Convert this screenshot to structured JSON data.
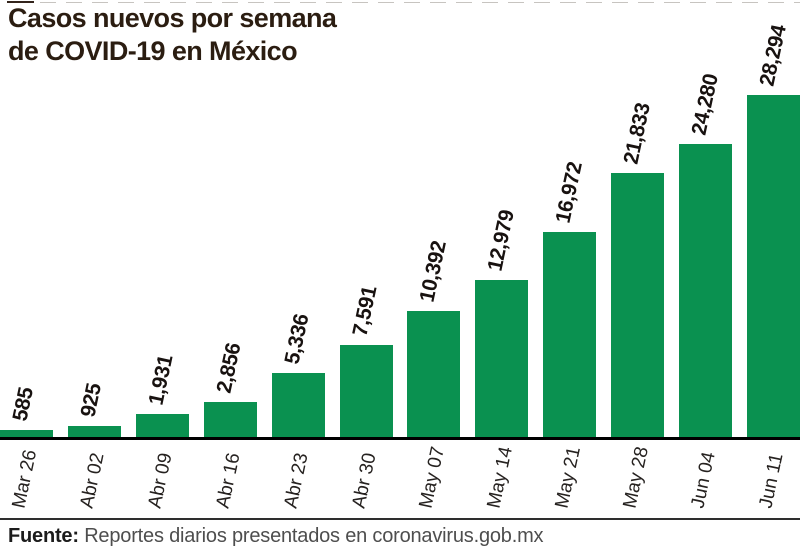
{
  "header": {
    "title_line1": "Casos nuevos por semana",
    "title_line2": "de COVID-19 en México"
  },
  "chart_data": {
    "type": "bar",
    "title": "Casos nuevos por semana de COVID-19 en México",
    "categories": [
      "Mar 26",
      "Abr 02",
      "Abr 09",
      "Abr 16",
      "Abr 23",
      "Abr 30",
      "May 07",
      "May 14",
      "May 21",
      "May 28",
      "Jun 04",
      "Jun 11"
    ],
    "values": [
      585,
      925,
      1931,
      2856,
      5336,
      7591,
      10392,
      12979,
      16972,
      21833,
      24280,
      28294
    ],
    "value_labels": [
      "585",
      "925",
      "1,931",
      "2,856",
      "5,336",
      "7,591",
      "10,392",
      "12,979",
      "16,972",
      "21,833",
      "24,280",
      "28,294"
    ],
    "xlabel": "",
    "ylabel": "",
    "ylim": [
      0,
      28294
    ],
    "grid": false,
    "legend": false,
    "orientation": "vertical",
    "label_rotation_deg": -78,
    "bar_color": "#0a9150",
    "axis_color": "#000000",
    "value_label_color": "#181210",
    "tick_label_color": "#262220",
    "title_color": "#2b1d11"
  },
  "footer": {
    "source_label": "Fuente:",
    "source_text": "Reportes diarios presentados en coronavirus.gob.mx"
  }
}
